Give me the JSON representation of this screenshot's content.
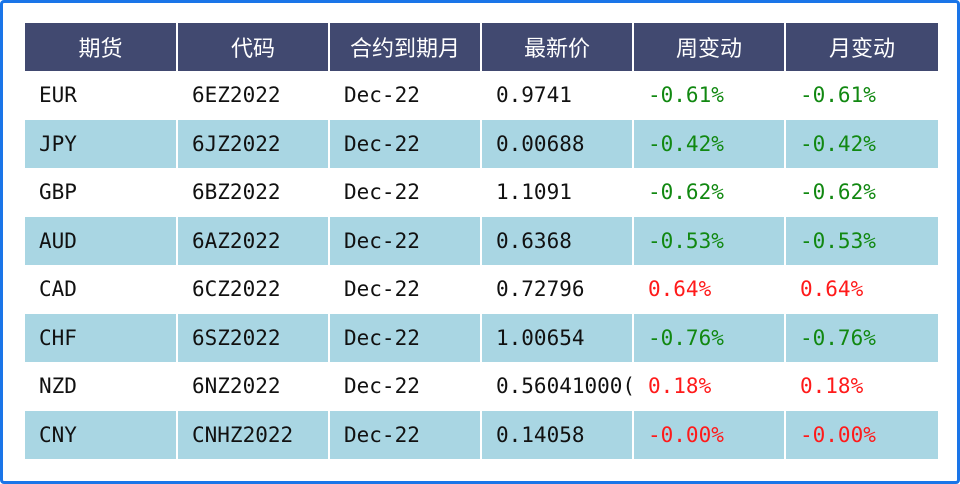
{
  "colors": {
    "header_bg": "#414970",
    "stripe_bg": "#a9d6e3",
    "negative_change": "#118811",
    "positive_change": "#ff1a1a",
    "frame_border": "#1a75e8"
  },
  "table": {
    "headers": [
      "期货",
      "代码",
      "合约到期月",
      "最新价",
      "周变动",
      "月变动"
    ],
    "rows": [
      {
        "future": "EUR",
        "code": "6EZ2022",
        "expiry": "Dec-22",
        "price": "0.9741",
        "week_change": "-0.61%",
        "month_change": "-0.61%"
      },
      {
        "future": "JPY",
        "code": "6JZ2022",
        "expiry": "Dec-22",
        "price": "0.00688",
        "week_change": "-0.42%",
        "month_change": "-0.42%"
      },
      {
        "future": "GBP",
        "code": "6BZ2022",
        "expiry": "Dec-22",
        "price": "1.1091",
        "week_change": "-0.62%",
        "month_change": "-0.62%"
      },
      {
        "future": "AUD",
        "code": "6AZ2022",
        "expiry": "Dec-22",
        "price": "0.6368",
        "week_change": "-0.53%",
        "month_change": "-0.53%"
      },
      {
        "future": "CAD",
        "code": "6CZ2022",
        "expiry": "Dec-22",
        "price": "0.72796",
        "week_change": "0.64%",
        "month_change": "0.64%"
      },
      {
        "future": "CHF",
        "code": "6SZ2022",
        "expiry": "Dec-22",
        "price": "1.00654",
        "week_change": "-0.76%",
        "month_change": "-0.76%"
      },
      {
        "future": "NZD",
        "code": "6NZ2022",
        "expiry": "Dec-22",
        "price": "0.56041000(",
        "week_change": "0.18%",
        "month_change": "0.18%"
      },
      {
        "future": "CNY",
        "code": "CNHZ2022",
        "expiry": "Dec-22",
        "price": "0.14058",
        "week_change": "-0.00%",
        "month_change": "-0.00%"
      }
    ]
  }
}
